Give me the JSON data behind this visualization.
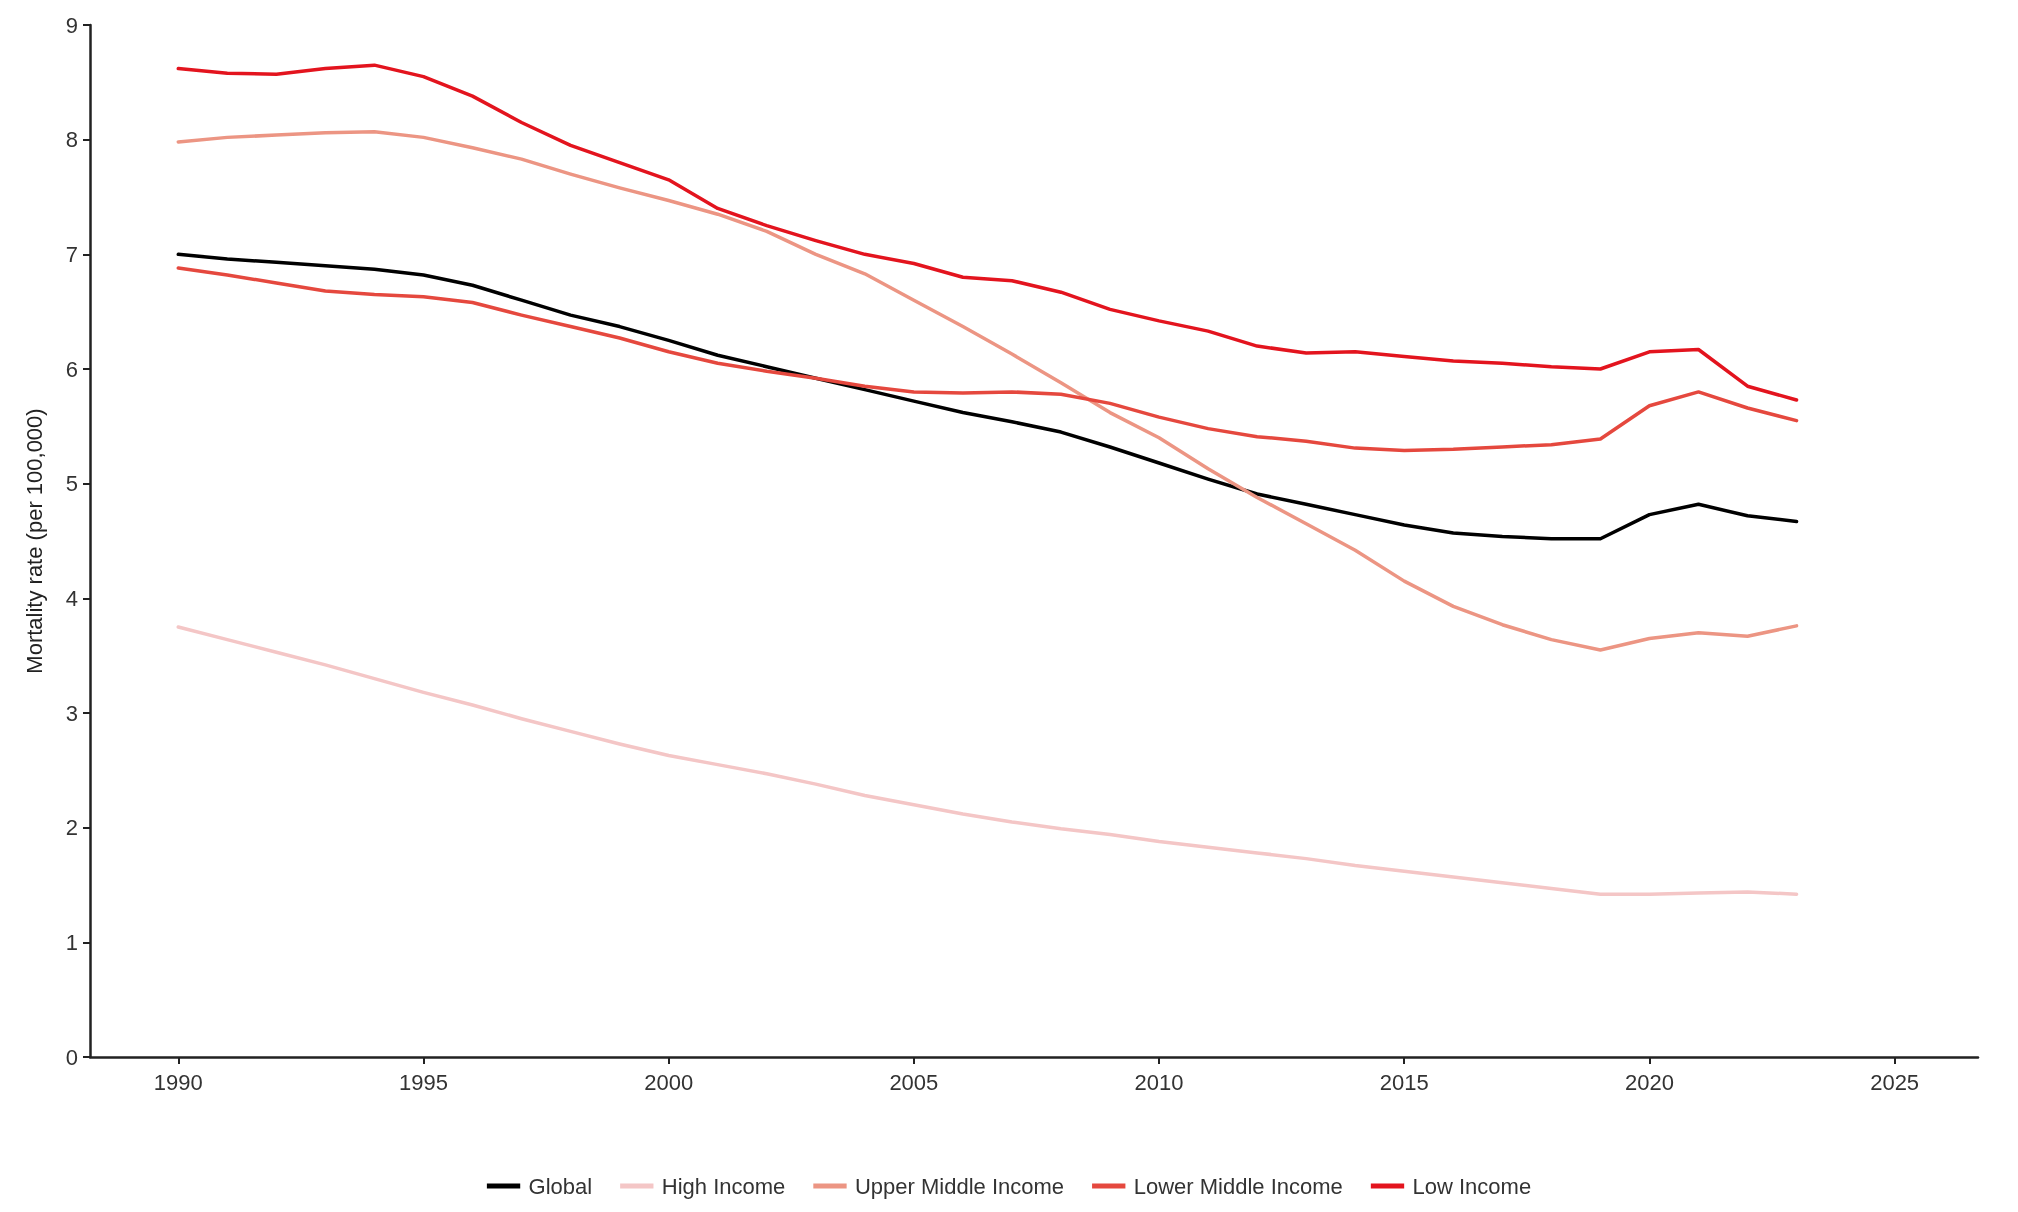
{
  "chart_data": {
    "type": "line",
    "ylabel": "Mortality rate (per 100,000)",
    "x": [
      1990,
      1991,
      1992,
      1993,
      1994,
      1995,
      1996,
      1997,
      1998,
      1999,
      2000,
      2001,
      2002,
      2003,
      2004,
      2005,
      2006,
      2007,
      2008,
      2009,
      2010,
      2011,
      2012,
      2013,
      2014,
      2015,
      2016,
      2017,
      2018,
      2019,
      2020,
      2021,
      2022,
      2023
    ],
    "xlim": [
      1988.2,
      2026.7
    ],
    "xticks": [
      1990,
      1995,
      2000,
      2005,
      2010,
      2015,
      2020,
      2025
    ],
    "ylim": [
      0,
      9
    ],
    "yticks": [
      0,
      1,
      2,
      3,
      4,
      5,
      6,
      7,
      8,
      9
    ],
    "grid": false,
    "legend": "bottom",
    "marker": "none",
    "line_style": "solid",
    "series": [
      {
        "name": "Global",
        "color": "#000000",
        "values": [
          7.0,
          6.96,
          6.93,
          6.9,
          6.87,
          6.82,
          6.73,
          6.6,
          6.47,
          6.37,
          6.25,
          6.12,
          6.02,
          5.92,
          5.82,
          5.72,
          5.62,
          5.54,
          5.45,
          5.32,
          5.18,
          5.04,
          4.91,
          4.82,
          4.73,
          4.64,
          4.57,
          4.54,
          4.52,
          4.52,
          4.73,
          4.82,
          4.72,
          4.67
        ]
      },
      {
        "name": "High Income",
        "color": "#f4c6c6",
        "values": [
          3.75,
          3.64,
          3.53,
          3.42,
          3.3,
          3.18,
          3.07,
          2.95,
          2.84,
          2.73,
          2.63,
          2.55,
          2.47,
          2.38,
          2.28,
          2.2,
          2.12,
          2.05,
          1.99,
          1.94,
          1.88,
          1.83,
          1.78,
          1.73,
          1.67,
          1.62,
          1.57,
          1.52,
          1.47,
          1.42,
          1.42,
          1.43,
          1.44,
          1.42
        ]
      },
      {
        "name": "Upper Middle Income",
        "color": "#ec9583",
        "values": [
          7.98,
          8.02,
          8.04,
          8.06,
          8.07,
          8.02,
          7.93,
          7.83,
          7.7,
          7.58,
          7.47,
          7.35,
          7.2,
          7.0,
          6.83,
          6.6,
          6.37,
          6.13,
          5.88,
          5.62,
          5.4,
          5.13,
          4.88,
          4.65,
          4.42,
          4.15,
          3.93,
          3.77,
          3.64,
          3.55,
          3.65,
          3.7,
          3.67,
          3.76
        ]
      },
      {
        "name": "Lower Middle Income",
        "color": "#e5483e",
        "values": [
          6.88,
          6.82,
          6.75,
          6.68,
          6.65,
          6.63,
          6.58,
          6.47,
          6.37,
          6.27,
          6.15,
          6.05,
          5.98,
          5.92,
          5.85,
          5.8,
          5.79,
          5.8,
          5.78,
          5.7,
          5.58,
          5.48,
          5.41,
          5.37,
          5.31,
          5.29,
          5.3,
          5.32,
          5.34,
          5.39,
          5.68,
          5.8,
          5.66,
          5.55
        ]
      },
      {
        "name": "Low Income",
        "color": "#e3141e",
        "values": [
          8.62,
          8.58,
          8.57,
          8.62,
          8.65,
          8.55,
          8.38,
          8.15,
          7.95,
          7.8,
          7.65,
          7.4,
          7.25,
          7.12,
          7.0,
          6.92,
          6.8,
          6.77,
          6.67,
          6.52,
          6.42,
          6.33,
          6.2,
          6.14,
          6.15,
          6.11,
          6.07,
          6.05,
          6.02,
          6.0,
          6.15,
          6.17,
          5.85,
          5.73
        ]
      }
    ]
  }
}
